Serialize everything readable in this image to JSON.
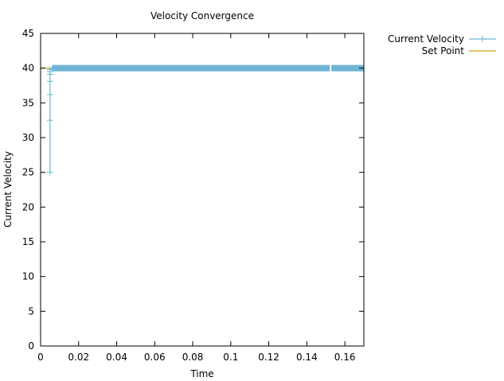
{
  "chart_data": {
    "type": "line",
    "title": "Velocity Convergence",
    "xlabel": "Time",
    "ylabel": "Current Velocity",
    "xlim": [
      0,
      0.17
    ],
    "ylim": [
      0,
      45
    ],
    "x_ticks": [
      0,
      0.02,
      0.04,
      0.06,
      0.08,
      0.1,
      0.12,
      0.14,
      0.16
    ],
    "x_tick_labels": [
      "0",
      "0.02",
      "0.04",
      "0.06",
      "0.08",
      "0.1",
      "0.12",
      "0.14",
      "0.16"
    ],
    "y_ticks": [
      0,
      5,
      10,
      15,
      20,
      25,
      30,
      35,
      40,
      45
    ],
    "y_tick_labels": [
      "0",
      "5",
      "10",
      "15",
      "20",
      "25",
      "30",
      "35",
      "40",
      "45"
    ],
    "grid": false,
    "legend_position": "outside-top-right",
    "series": [
      {
        "name": "Current Velocity",
        "style": "linespoints",
        "marker": "plus",
        "color": "#6fb3d6",
        "x": [
          0.005,
          0.005,
          0.005,
          0.005,
          0.005,
          0.005,
          0.005,
          0.006,
          0.007,
          0.02,
          0.04,
          0.06,
          0.08,
          0.1,
          0.12,
          0.14,
          0.152,
          0.16,
          0.17
        ],
        "y": [
          25,
          32.5,
          36.2,
          38.1,
          39.1,
          39.5,
          39.8,
          40,
          40,
          40,
          40,
          40,
          40,
          40,
          40,
          40,
          40,
          40,
          40
        ]
      },
      {
        "name": "Set Point",
        "style": "line",
        "color": "#d4a017",
        "x": [
          0,
          0.17
        ],
        "y": [
          40,
          40
        ]
      }
    ]
  }
}
